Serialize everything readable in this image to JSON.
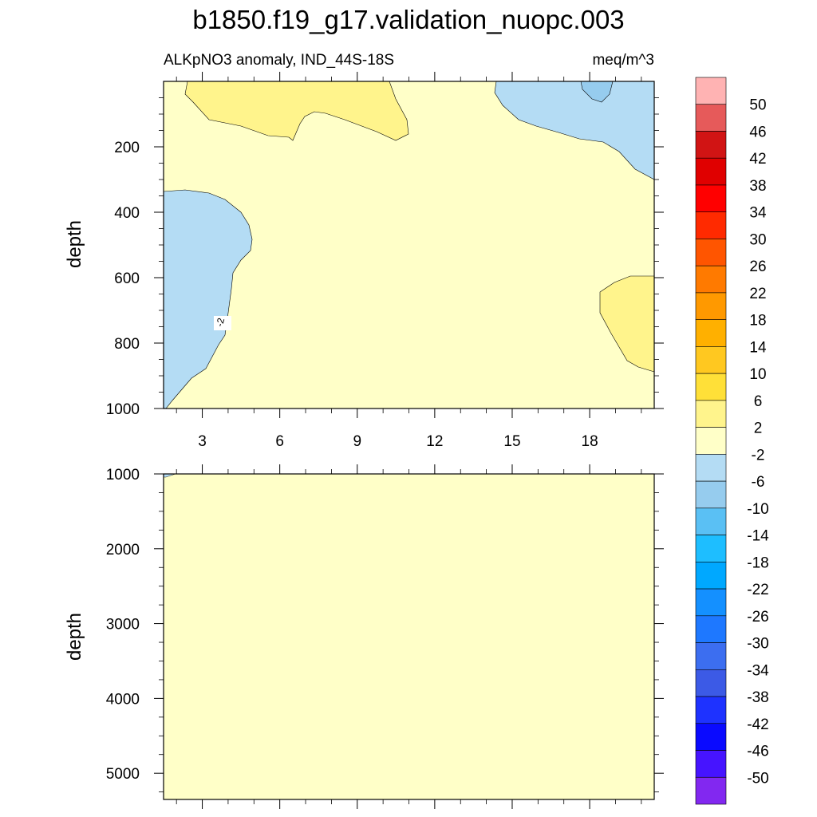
{
  "chart_data": {
    "type": "heatmap",
    "title": "b1850.f19_g17.validation_nuopc.003",
    "subtitle_left": "ALKpNO3 anomaly, IND_44S-18S",
    "subtitle_right": "meq/m^3",
    "xlabel": "",
    "x_ticks": [
      "3",
      "6",
      "9",
      "12",
      "15",
      "18"
    ],
    "x_tick_values": [
      3,
      6,
      9,
      12,
      15,
      18
    ],
    "xlim": [
      1.5,
      20.5
    ],
    "panels": [
      {
        "name": "upper",
        "ylabel": "depth",
        "ylim": [
          0,
          1000
        ],
        "y_ticks": [
          "200",
          "400",
          "600",
          "800",
          "1000"
        ],
        "y_tick_values": [
          200,
          400,
          600,
          800,
          1000
        ],
        "contour_label": "-2"
      },
      {
        "name": "lower",
        "ylabel": "depth",
        "ylim": [
          1000,
          5350
        ],
        "y_ticks": [
          "1000",
          "2000",
          "3000",
          "4000",
          "5000"
        ],
        "y_tick_values": [
          1000,
          2000,
          3000,
          4000,
          5000
        ]
      }
    ],
    "colorbar": {
      "labels": [
        "50",
        "46",
        "42",
        "38",
        "34",
        "30",
        "26",
        "22",
        "18",
        "14",
        "10",
        "6",
        "2",
        "-2",
        "-6",
        "-10",
        "-14",
        "-18",
        "-22",
        "-26",
        "-30",
        "-34",
        "-38",
        "-42",
        "-46",
        "-50"
      ],
      "colors": [
        "#ffb3b3",
        "#e65a5a",
        "#d11414",
        "#e00000",
        "#ff0000",
        "#ff2a00",
        "#ff5500",
        "#ff7a00",
        "#ff9900",
        "#ffb000",
        "#ffc820",
        "#ffe038",
        "#fff48c",
        "#ffffc8",
        "#b4dcf4",
        "#96ccee",
        "#5ac0f4",
        "#1ebeff",
        "#00a8ff",
        "#1490ff",
        "#1e78ff",
        "#3c6ef0",
        "#3c5ae6",
        "#1e32ff",
        "#0a0aff",
        "#4614ff",
        "#8228f0"
      ]
    },
    "colors": {
      "background_field": "#ffffc8",
      "positive_2_6": "#fff48c",
      "negative_6_2": "#b4dcf4",
      "negative_10_6": "#96ccee"
    }
  }
}
